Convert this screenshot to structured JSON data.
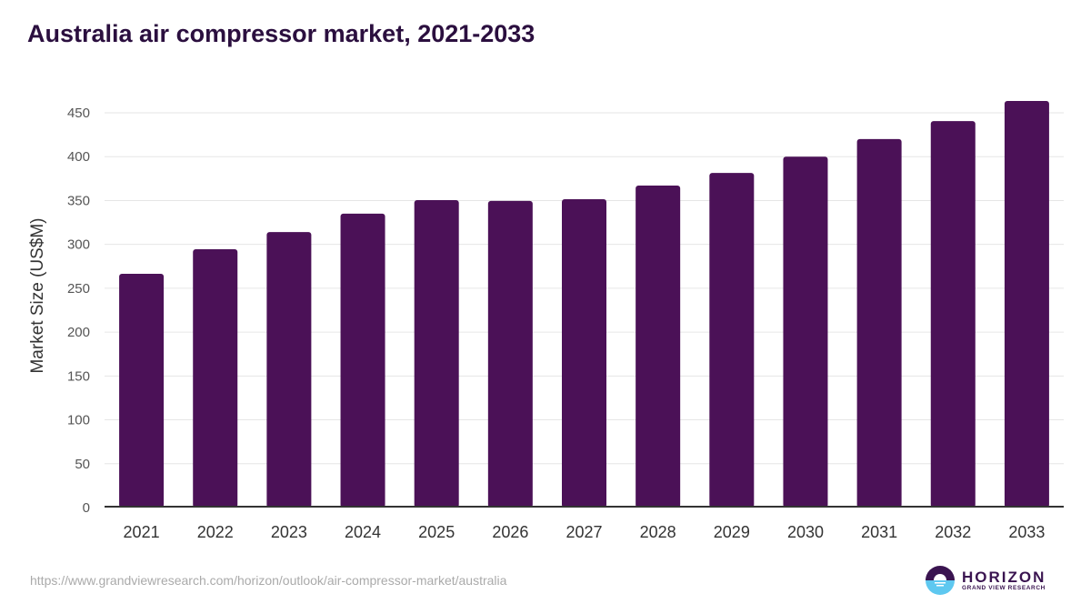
{
  "chart_data": {
    "type": "bar",
    "title": "Australia air compressor market, 2021-2033",
    "xlabel": "",
    "ylabel": "Market Size (US$M)",
    "categories": [
      "2021",
      "2022",
      "2023",
      "2024",
      "2025",
      "2026",
      "2027",
      "2028",
      "2029",
      "2030",
      "2031",
      "2032",
      "2033"
    ],
    "values": [
      266.5,
      294.5,
      314,
      335,
      350.5,
      349.5,
      351.5,
      367,
      381.5,
      400,
      420,
      440.5,
      463.5
    ],
    "ylim": [
      0,
      450
    ],
    "yticks": [
      0,
      50,
      100,
      150,
      200,
      250,
      300,
      350,
      400,
      450
    ],
    "grid": true,
    "bar_color": "#4b1157"
  },
  "source_url": "https://www.grandviewresearch.com/horizon/outlook/air-compressor-market/australia",
  "logo": {
    "name": "HORIZON",
    "sub": "GRAND VIEW RESEARCH"
  }
}
